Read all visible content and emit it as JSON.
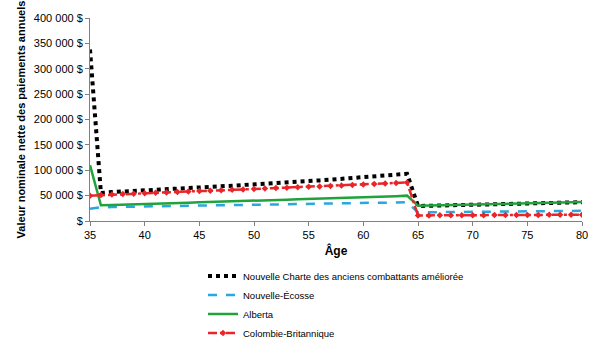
{
  "chart_data": {
    "type": "line",
    "x_label": "Âge",
    "y_label": "Valeur nominale nette des paiements annuels",
    "x": [
      35,
      36,
      37,
      38,
      39,
      40,
      41,
      42,
      43,
      44,
      45,
      46,
      47,
      48,
      49,
      50,
      51,
      52,
      53,
      54,
      55,
      56,
      57,
      58,
      59,
      60,
      61,
      62,
      63,
      64,
      65,
      66,
      67,
      68,
      69,
      70,
      71,
      72,
      73,
      74,
      75,
      76,
      77,
      78,
      79,
      80
    ],
    "series": [
      {
        "name": "Nouvelle Charte des anciens combattants améliorée",
        "color": "#000000",
        "line_style": "dotted",
        "marker": "none",
        "values": [
          338000,
          55000,
          57000,
          58000,
          59000,
          60000,
          61000,
          62000,
          63500,
          64500,
          66000,
          67000,
          68500,
          69500,
          71000,
          72000,
          73500,
          75000,
          76000,
          77500,
          79000,
          80000,
          81500,
          83000,
          84500,
          86000,
          87500,
          89000,
          91000,
          93000,
          29500,
          30000,
          30500,
          31000,
          31500,
          32000,
          32500,
          33000,
          33500,
          34000,
          34500,
          35000,
          35500,
          36000,
          36500,
          37000
        ]
      },
      {
        "name": "Nouvelle-Écosse",
        "color": "#2aa7dd",
        "line_style": "dashed",
        "marker": "none",
        "values": [
          24000,
          27000,
          27500,
          28000,
          28000,
          28500,
          29000,
          29000,
          29500,
          30000,
          30500,
          30500,
          31000,
          31500,
          31500,
          32000,
          32500,
          33000,
          33000,
          33500,
          34000,
          34000,
          34500,
          35000,
          35000,
          35500,
          36000,
          36000,
          36500,
          37000,
          17000,
          17200,
          17400,
          17600,
          17800,
          18000,
          18200,
          18400,
          18600,
          18800,
          19000,
          19200,
          19400,
          19600,
          19800,
          20000
        ]
      },
      {
        "name": "Alberta",
        "color": "#1fa33a",
        "line_style": "solid",
        "marker": "none",
        "values": [
          110000,
          31000,
          31500,
          32000,
          33000,
          33500,
          34000,
          35000,
          35500,
          36000,
          37000,
          37500,
          38000,
          39000,
          39500,
          40000,
          41000,
          41500,
          42000,
          43000,
          43500,
          44000,
          45000,
          45500,
          46000,
          47000,
          47500,
          48000,
          49000,
          50000,
          30000,
          30500,
          31000,
          31500,
          32000,
          32500,
          33000,
          33500,
          34000,
          34500,
          35000,
          35500,
          36000,
          36500,
          37000,
          37500
        ]
      },
      {
        "name": "Colombie-Britannique",
        "color": "#e8262a",
        "line_style": "dashdot",
        "marker": "diamond",
        "values": [
          50000,
          51000,
          52000,
          53000,
          53500,
          54500,
          55500,
          56000,
          57000,
          58000,
          59000,
          59500,
          60500,
          61500,
          62000,
          63000,
          64000,
          65000,
          65500,
          66500,
          67500,
          68000,
          69000,
          70000,
          71000,
          72000,
          73000,
          74000,
          75000,
          76000,
          11000,
          11000,
          11100,
          11200,
          11300,
          11400,
          11500,
          11600,
          11700,
          11800,
          11900,
          12000,
          12100,
          12200,
          12300,
          12400
        ]
      }
    ],
    "xlim": [
      35,
      80
    ],
    "xticks": [
      35,
      40,
      45,
      50,
      55,
      60,
      65,
      70,
      75,
      80
    ],
    "ylim": [
      0,
      400000
    ],
    "yticks": [
      {
        "value": 0,
        "label": "$"
      },
      {
        "value": 50000,
        "label": "50 000 $"
      },
      {
        "value": 100000,
        "label": "100 000 $"
      },
      {
        "value": 150000,
        "label": "150 000 $"
      },
      {
        "value": 200000,
        "label": "200 000 $"
      },
      {
        "value": 250000,
        "label": "250 000 $"
      },
      {
        "value": 300000,
        "label": "300 000 $"
      },
      {
        "value": 350000,
        "label": "350 000 $"
      },
      {
        "value": 400000,
        "label": "400 000 $"
      }
    ],
    "grid": false,
    "legend": "bottom"
  }
}
